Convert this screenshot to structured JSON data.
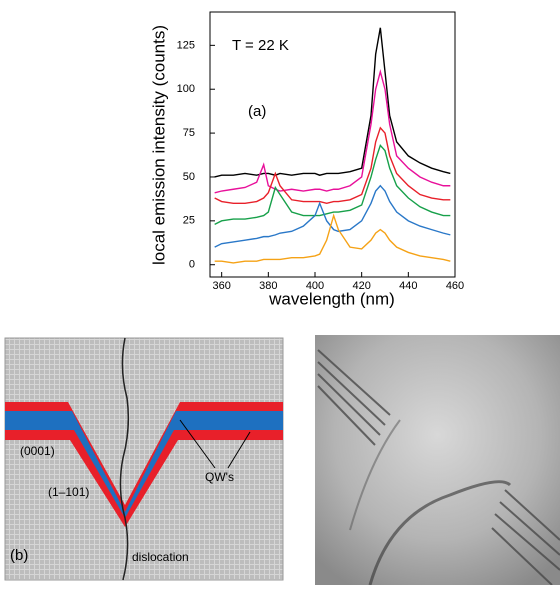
{
  "chart_data": {
    "type": "line",
    "xlabel": "wavelength (nm)",
    "ylabel": "local emission intensity (counts)",
    "annotations": [
      "T = 22 K",
      "(a)"
    ],
    "x": [
      357,
      360,
      365,
      370,
      375,
      378,
      380,
      383,
      385,
      390,
      395,
      400,
      402,
      405,
      408,
      410,
      415,
      420,
      424,
      426,
      428,
      430,
      432,
      435,
      440,
      445,
      450,
      455,
      458
    ],
    "series": [
      {
        "color": "#000000",
        "values": [
          50,
          51,
          51,
          52,
          51,
          52,
          52,
          51,
          52,
          51,
          52,
          52,
          51,
          52,
          52,
          52,
          53,
          55,
          85,
          120,
          135,
          110,
          85,
          70,
          62,
          58,
          55,
          53,
          52
        ]
      },
      {
        "color": "#e8109a",
        "values": [
          41,
          42,
          43,
          44,
          47,
          57,
          45,
          43,
          42,
          43,
          42,
          43,
          43,
          42,
          43,
          43,
          45,
          50,
          80,
          100,
          110,
          100,
          80,
          62,
          55,
          50,
          47,
          45,
          45
        ]
      },
      {
        "color": "#e8202a",
        "values": [
          38,
          36,
          35,
          35,
          36,
          38,
          41,
          52,
          45,
          37,
          36,
          36,
          36,
          35,
          36,
          36,
          37,
          40,
          55,
          70,
          78,
          75,
          62,
          52,
          45,
          40,
          38,
          37,
          37
        ]
      },
      {
        "color": "#17a04a",
        "values": [
          23,
          25,
          26,
          26,
          27,
          28,
          30,
          44,
          40,
          30,
          28,
          28,
          28,
          29,
          30,
          30,
          31,
          34,
          50,
          60,
          68,
          65,
          55,
          45,
          38,
          33,
          30,
          28,
          28
        ]
      },
      {
        "color": "#2a78c8",
        "values": [
          10,
          12,
          13,
          14,
          15,
          16,
          16,
          17,
          18,
          19,
          22,
          28,
          35,
          25,
          20,
          19,
          20,
          25,
          35,
          42,
          45,
          42,
          36,
          30,
          25,
          22,
          20,
          18,
          17
        ]
      },
      {
        "color": "#f5a216",
        "values": [
          2,
          2,
          1,
          2,
          2,
          3,
          3,
          3,
          3,
          4,
          4,
          5,
          6,
          14,
          28,
          20,
          10,
          9,
          14,
          18,
          20,
          18,
          14,
          10,
          7,
          5,
          4,
          3,
          2
        ]
      }
    ],
    "xlim": [
      355,
      460
    ],
    "xticks": [
      360,
      380,
      400,
      420,
      440,
      460
    ],
    "ylim": [
      -7,
      144
    ],
    "yticks": [
      0,
      25,
      50,
      75,
      100,
      125
    ]
  },
  "diagram": {
    "labels": [
      "(0001)",
      "(1–101)",
      "QW's",
      "(b)",
      "dislocation"
    ]
  }
}
